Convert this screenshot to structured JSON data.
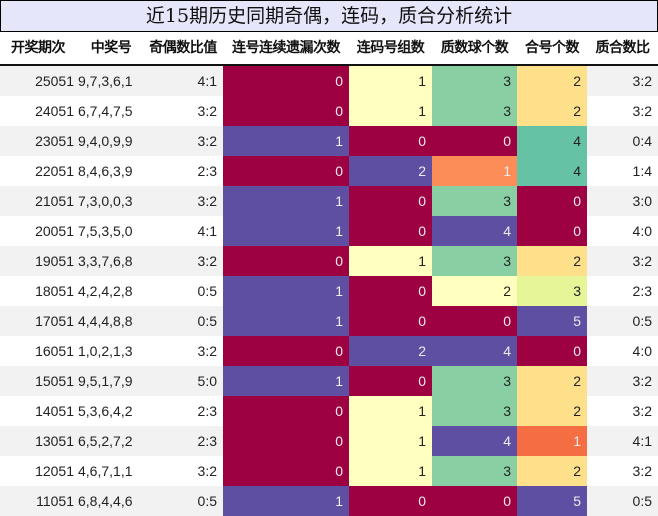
{
  "title": "近15期历史同期奇偶，连码，质合分析统计",
  "columns": [
    "开奖期次",
    "中奖号",
    "奇偶数比值",
    "连号连续遗漏次数",
    "连码号组数",
    "质数球个数",
    "合号个数",
    "质合数比"
  ],
  "colors": {
    "row_odd_bg": "#f2f2f2",
    "row_even_bg": "#ffffff",
    "crimson": "#9e0142",
    "purple": "#5e4fa2",
    "pale_yellow": "#ffffbf",
    "mint": "#88d0a4",
    "teal": "#66c2a5",
    "light_orange": "#fee08b",
    "orange": "#fc8d59",
    "red_orange": "#f46d43",
    "lime": "#e6f598"
  },
  "chart_data": {
    "type": "table",
    "title": "近15期历史同期奇偶，连码，质合分析统计",
    "columns": [
      "开奖期次",
      "中奖号",
      "奇偶数比值",
      "连号连续遗漏次数",
      "连码号组数",
      "质数球个数",
      "合号个数",
      "质合数比"
    ],
    "rows": [
      [
        "25051",
        "9,7,3,6,1",
        "4:1",
        0,
        1,
        3,
        2,
        "3:2"
      ],
      [
        "24051",
        "6,7,4,7,5",
        "3:2",
        0,
        1,
        3,
        2,
        "3:2"
      ],
      [
        "23051",
        "9,4,0,9,9",
        "3:2",
        1,
        0,
        0,
        4,
        "0:4"
      ],
      [
        "22051",
        "8,4,6,3,9",
        "2:3",
        0,
        2,
        1,
        4,
        "1:4"
      ],
      [
        "21051",
        "7,3,0,0,3",
        "3:2",
        1,
        0,
        3,
        0,
        "3:0"
      ],
      [
        "20051",
        "7,5,3,5,0",
        "4:1",
        1,
        0,
        4,
        0,
        "4:0"
      ],
      [
        "19051",
        "3,3,7,6,8",
        "3:2",
        0,
        1,
        3,
        2,
        "3:2"
      ],
      [
        "18051",
        "4,2,4,2,8",
        "0:5",
        1,
        0,
        2,
        3,
        "2:3"
      ],
      [
        "17051",
        "4,4,4,8,8",
        "0:5",
        1,
        0,
        0,
        5,
        "0:5"
      ],
      [
        "16051",
        "1,0,2,1,3",
        "3:2",
        0,
        2,
        4,
        0,
        "4:0"
      ],
      [
        "15051",
        "9,5,1,7,9",
        "5:0",
        1,
        0,
        3,
        2,
        "3:2"
      ],
      [
        "14051",
        "5,3,6,4,2",
        "2:3",
        0,
        1,
        3,
        2,
        "3:2"
      ],
      [
        "13051",
        "6,5,2,7,2",
        "2:3",
        0,
        1,
        4,
        1,
        "4:1"
      ],
      [
        "12051",
        "4,6,7,1,1",
        "3:2",
        0,
        1,
        3,
        2,
        "3:2"
      ],
      [
        "11051",
        "6,8,4,4,6",
        "0:5",
        1,
        0,
        0,
        5,
        "0:5"
      ]
    ]
  },
  "rows": [
    {
      "period": "25051",
      "numbers": "9,7,3,6,1",
      "odd_even": "4:1",
      "lianhao": "0",
      "lianma": "1",
      "prime": "3",
      "composite": "2",
      "prime_ratio": "3:2",
      "bg": {
        "lianhao": "#9e0142",
        "lianma": "#ffffbf",
        "prime": "#88d0a4",
        "composite": "#fee08b"
      },
      "fg": {
        "lianhao": "#ededed",
        "lianma": "#222222",
        "prime": "#222222",
        "composite": "#222222"
      }
    },
    {
      "period": "24051",
      "numbers": "6,7,4,7,5",
      "odd_even": "3:2",
      "lianhao": "0",
      "lianma": "1",
      "prime": "3",
      "composite": "2",
      "prime_ratio": "3:2",
      "bg": {
        "lianhao": "#9e0142",
        "lianma": "#ffffbf",
        "prime": "#88d0a4",
        "composite": "#fee08b"
      },
      "fg": {
        "lianhao": "#ededed",
        "lianma": "#222222",
        "prime": "#222222",
        "composite": "#222222"
      }
    },
    {
      "period": "23051",
      "numbers": "9,4,0,9,9",
      "odd_even": "3:2",
      "lianhao": "1",
      "lianma": "0",
      "prime": "0",
      "composite": "4",
      "prime_ratio": "0:4",
      "bg": {
        "lianhao": "#5e4fa2",
        "lianma": "#9e0142",
        "prime": "#9e0142",
        "composite": "#66c2a5"
      },
      "fg": {
        "lianhao": "#ededed",
        "lianma": "#ededed",
        "prime": "#ededed",
        "composite": "#222222"
      }
    },
    {
      "period": "22051",
      "numbers": "8,4,6,3,9",
      "odd_even": "2:3",
      "lianhao": "0",
      "lianma": "2",
      "prime": "1",
      "composite": "4",
      "prime_ratio": "1:4",
      "bg": {
        "lianhao": "#9e0142",
        "lianma": "#5e4fa2",
        "prime": "#fc8d59",
        "composite": "#66c2a5"
      },
      "fg": {
        "lianhao": "#ededed",
        "lianma": "#ededed",
        "prime": "#ededed",
        "composite": "#222222"
      }
    },
    {
      "period": "21051",
      "numbers": "7,3,0,0,3",
      "odd_even": "3:2",
      "lianhao": "1",
      "lianma": "0",
      "prime": "3",
      "composite": "0",
      "prime_ratio": "3:0",
      "bg": {
        "lianhao": "#5e4fa2",
        "lianma": "#9e0142",
        "prime": "#88d0a4",
        "composite": "#9e0142"
      },
      "fg": {
        "lianhao": "#ededed",
        "lianma": "#ededed",
        "prime": "#222222",
        "composite": "#ededed"
      }
    },
    {
      "period": "20051",
      "numbers": "7,5,3,5,0",
      "odd_even": "4:1",
      "lianhao": "1",
      "lianma": "0",
      "prime": "4",
      "composite": "0",
      "prime_ratio": "4:0",
      "bg": {
        "lianhao": "#5e4fa2",
        "lianma": "#9e0142",
        "prime": "#5e4fa2",
        "composite": "#9e0142"
      },
      "fg": {
        "lianhao": "#ededed",
        "lianma": "#ededed",
        "prime": "#ededed",
        "composite": "#ededed"
      }
    },
    {
      "period": "19051",
      "numbers": "3,3,7,6,8",
      "odd_even": "3:2",
      "lianhao": "0",
      "lianma": "1",
      "prime": "3",
      "composite": "2",
      "prime_ratio": "3:2",
      "bg": {
        "lianhao": "#9e0142",
        "lianma": "#ffffbf",
        "prime": "#88d0a4",
        "composite": "#fee08b"
      },
      "fg": {
        "lianhao": "#ededed",
        "lianma": "#222222",
        "prime": "#222222",
        "composite": "#222222"
      }
    },
    {
      "period": "18051",
      "numbers": "4,2,4,2,8",
      "odd_even": "0:5",
      "lianhao": "1",
      "lianma": "0",
      "prime": "2",
      "composite": "3",
      "prime_ratio": "2:3",
      "bg": {
        "lianhao": "#5e4fa2",
        "lianma": "#9e0142",
        "prime": "#ffffbf",
        "composite": "#e6f598"
      },
      "fg": {
        "lianhao": "#ededed",
        "lianma": "#ededed",
        "prime": "#222222",
        "composite": "#222222"
      }
    },
    {
      "period": "17051",
      "numbers": "4,4,4,8,8",
      "odd_even": "0:5",
      "lianhao": "1",
      "lianma": "0",
      "prime": "0",
      "composite": "5",
      "prime_ratio": "0:5",
      "bg": {
        "lianhao": "#5e4fa2",
        "lianma": "#9e0142",
        "prime": "#9e0142",
        "composite": "#5e4fa2"
      },
      "fg": {
        "lianhao": "#ededed",
        "lianma": "#ededed",
        "prime": "#ededed",
        "composite": "#ededed"
      }
    },
    {
      "period": "16051",
      "numbers": "1,0,2,1,3",
      "odd_even": "3:2",
      "lianhao": "0",
      "lianma": "2",
      "prime": "4",
      "composite": "0",
      "prime_ratio": "4:0",
      "bg": {
        "lianhao": "#9e0142",
        "lianma": "#5e4fa2",
        "prime": "#5e4fa2",
        "composite": "#9e0142"
      },
      "fg": {
        "lianhao": "#ededed",
        "lianma": "#ededed",
        "prime": "#ededed",
        "composite": "#ededed"
      }
    },
    {
      "period": "15051",
      "numbers": "9,5,1,7,9",
      "odd_even": "5:0",
      "lianhao": "1",
      "lianma": "0",
      "prime": "3",
      "composite": "2",
      "prime_ratio": "3:2",
      "bg": {
        "lianhao": "#5e4fa2",
        "lianma": "#9e0142",
        "prime": "#88d0a4",
        "composite": "#fee08b"
      },
      "fg": {
        "lianhao": "#ededed",
        "lianma": "#ededed",
        "prime": "#222222",
        "composite": "#222222"
      }
    },
    {
      "period": "14051",
      "numbers": "5,3,6,4,2",
      "odd_even": "2:3",
      "lianhao": "0",
      "lianma": "1",
      "prime": "3",
      "composite": "2",
      "prime_ratio": "3:2",
      "bg": {
        "lianhao": "#9e0142",
        "lianma": "#ffffbf",
        "prime": "#88d0a4",
        "composite": "#fee08b"
      },
      "fg": {
        "lianhao": "#ededed",
        "lianma": "#222222",
        "prime": "#222222",
        "composite": "#222222"
      }
    },
    {
      "period": "13051",
      "numbers": "6,5,2,7,2",
      "odd_even": "2:3",
      "lianhao": "0",
      "lianma": "1",
      "prime": "4",
      "composite": "1",
      "prime_ratio": "4:1",
      "bg": {
        "lianhao": "#9e0142",
        "lianma": "#ffffbf",
        "prime": "#5e4fa2",
        "composite": "#f46d43"
      },
      "fg": {
        "lianhao": "#ededed",
        "lianma": "#222222",
        "prime": "#ededed",
        "composite": "#ededed"
      }
    },
    {
      "period": "12051",
      "numbers": "4,6,7,1,1",
      "odd_even": "3:2",
      "lianhao": "0",
      "lianma": "1",
      "prime": "3",
      "composite": "2",
      "prime_ratio": "3:2",
      "bg": {
        "lianhao": "#9e0142",
        "lianma": "#ffffbf",
        "prime": "#88d0a4",
        "composite": "#fee08b"
      },
      "fg": {
        "lianhao": "#ededed",
        "lianma": "#222222",
        "prime": "#222222",
        "composite": "#222222"
      }
    },
    {
      "period": "11051",
      "numbers": "6,8,4,4,6",
      "odd_even": "0:5",
      "lianhao": "1",
      "lianma": "0",
      "prime": "0",
      "composite": "5",
      "prime_ratio": "0:5",
      "bg": {
        "lianhao": "#5e4fa2",
        "lianma": "#9e0142",
        "prime": "#9e0142",
        "composite": "#5e4fa2"
      },
      "fg": {
        "lianhao": "#ededed",
        "lianma": "#ededed",
        "prime": "#ededed",
        "composite": "#ededed"
      }
    }
  ]
}
